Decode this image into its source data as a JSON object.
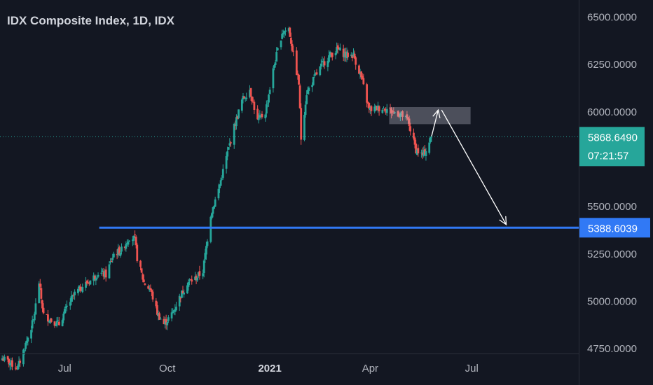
{
  "header": {
    "title": "IDX Composite Index, 1D, IDX"
  },
  "chart_data": {
    "type": "candlestick",
    "title": "IDX Composite Index, 1D, IDX",
    "y_ticks": [
      "6500.0000",
      "6250.0000",
      "6000.0000",
      "5500.0000",
      "5250.0000",
      "5000.0000",
      "4750.0000"
    ],
    "y_tick_values": [
      6500,
      6250,
      6000,
      5500,
      5250,
      5000,
      4750
    ],
    "x_ticks": [
      {
        "label": "Jul",
        "date": "2020-07-01",
        "bold": false
      },
      {
        "label": "Oct",
        "date": "2020-10-01",
        "bold": false
      },
      {
        "label": "2021",
        "date": "2021-01-01",
        "bold": true
      },
      {
        "label": "Apr",
        "date": "2021-04-01",
        "bold": false
      },
      {
        "label": "Jul",
        "date": "2021-07-01",
        "bold": false
      }
    ],
    "ylim": [
      4725,
      6590
    ],
    "xlim": [
      "2020-05-04",
      "2021-10-05"
    ],
    "colors": {
      "up": "#26a69a",
      "down": "#ef5350",
      "background": "#131722",
      "line": "#3179f5"
    },
    "close_series": [
      [
        "2020-05-06",
        4700
      ],
      [
        "2020-05-20",
        4650
      ],
      [
        "2020-06-03",
        4900
      ],
      [
        "2020-06-08",
        5100
      ],
      [
        "2020-06-12",
        4930
      ],
      [
        "2020-06-19",
        4900
      ],
      [
        "2020-06-26",
        4880
      ],
      [
        "2020-07-03",
        4970
      ],
      [
        "2020-07-10",
        5040
      ],
      [
        "2020-07-17",
        5080
      ],
      [
        "2020-07-24",
        5110
      ],
      [
        "2020-07-31",
        5150
      ],
      [
        "2020-08-07",
        5140
      ],
      [
        "2020-08-14",
        5250
      ],
      [
        "2020-08-21",
        5270
      ],
      [
        "2020-08-28",
        5340
      ],
      [
        "2020-09-02",
        5330
      ],
      [
        "2020-09-04",
        5230
      ],
      [
        "2020-09-10",
        5100
      ],
      [
        "2020-09-16",
        5060
      ],
      [
        "2020-09-22",
        4940
      ],
      [
        "2020-09-28",
        4880
      ],
      [
        "2020-10-05",
        4930
      ],
      [
        "2020-10-12",
        5020
      ],
      [
        "2020-10-19",
        5100
      ],
      [
        "2020-10-26",
        5120
      ],
      [
        "2020-11-02",
        5160
      ],
      [
        "2020-11-09",
        5460
      ],
      [
        "2020-11-16",
        5590
      ],
      [
        "2020-11-23",
        5760
      ],
      [
        "2020-11-30",
        5920
      ],
      [
        "2020-12-07",
        6060
      ],
      [
        "2020-12-14",
        6120
      ],
      [
        "2020-12-21",
        5950
      ],
      [
        "2020-12-28",
        6000
      ],
      [
        "2021-01-05",
        6250
      ],
      [
        "2021-01-12",
        6420
      ],
      [
        "2021-01-18",
        6440
      ],
      [
        "2021-01-22",
        6300
      ],
      [
        "2021-01-27",
        6150
      ],
      [
        "2021-01-29",
        5860
      ],
      [
        "2021-02-03",
        6100
      ],
      [
        "2021-02-10",
        6180
      ],
      [
        "2021-02-17",
        6250
      ],
      [
        "2021-02-24",
        6300
      ],
      [
        "2021-03-03",
        6330
      ],
      [
        "2021-03-10",
        6300
      ],
      [
        "2021-03-17",
        6300
      ],
      [
        "2021-03-24",
        6180
      ],
      [
        "2021-03-31",
        6010
      ],
      [
        "2021-04-07",
        6020
      ],
      [
        "2021-04-14",
        6020
      ],
      [
        "2021-04-21",
        6000
      ],
      [
        "2021-04-28",
        5990
      ],
      [
        "2021-05-05",
        5950
      ],
      [
        "2021-05-12",
        5800
      ],
      [
        "2021-05-18",
        5770
      ],
      [
        "2021-05-21",
        5800
      ],
      [
        "2021-05-26",
        5868.649
      ]
    ],
    "resistance_zone": {
      "x_start": "2021-04-18",
      "x_end": "2021-06-30",
      "y_low": 5935,
      "y_high": 6025
    },
    "support_line": {
      "value": 5388.6039,
      "x_start": "2020-08-01",
      "label": "5388.6039",
      "color": "#3179f5"
    },
    "last_price": {
      "value": 5868.649,
      "label": "5868.6490",
      "countdown": "07:21:57",
      "color": "#26a69a"
    },
    "annotations": [
      {
        "type": "arrow",
        "from": [
          "2021-05-26",
          5870
        ],
        "to": [
          "2021-06-01",
          6010
        ]
      },
      {
        "type": "arrow",
        "from": [
          "2021-06-04",
          6010
        ],
        "to": [
          "2021-08-01",
          5405
        ]
      }
    ],
    "grid": false
  }
}
